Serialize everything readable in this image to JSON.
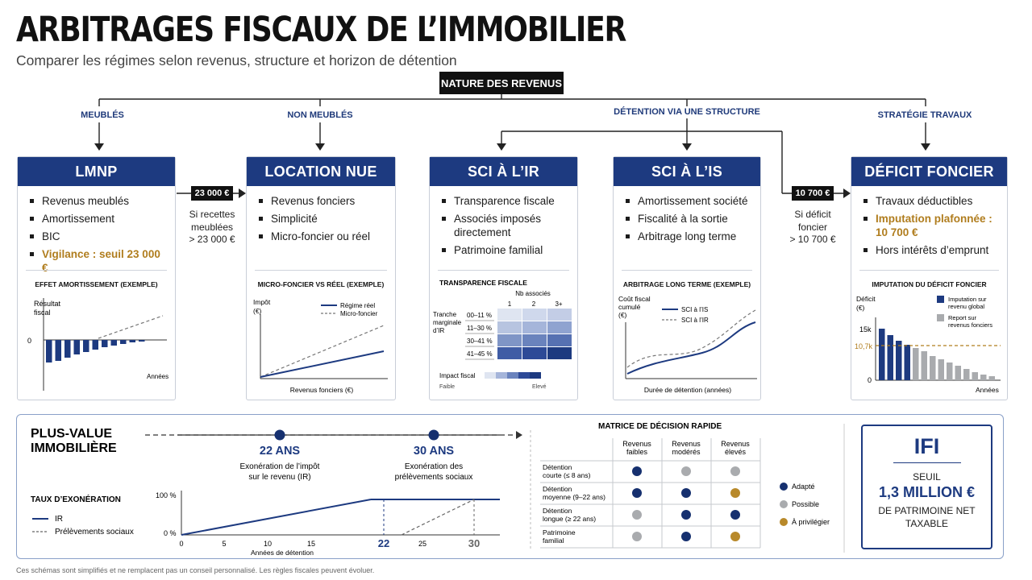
{
  "header": {
    "title": "ARBITRAGES FISCAUX DE L’IMMOBILIER",
    "subtitle": "Comparer les régimes selon revenus, structure et horizon de détention"
  },
  "root": "NATURE DES REVENUS",
  "branches": {
    "meubles": "MEUBLÉS",
    "non_meubles": "NON MEUBLÉS",
    "structure": "DÉTENTION VIA UNE STRUCTURE",
    "travaux": "STRATÉGIE TRAVAUX"
  },
  "connectors": {
    "lmnp": {
      "tag": "23 000 €",
      "line1": "Si recettes",
      "line2": "meublées",
      "line3": "> 23 000 €"
    },
    "deficit": {
      "tag": "10 700 €",
      "line1": "Si déficit",
      "line2": "foncier",
      "line3": "> 10 700 €"
    }
  },
  "cards": {
    "lmnp": {
      "title": "LMNP",
      "items": [
        "Revenus meublés",
        "Amortissement",
        "BIC"
      ],
      "highlight": "Vigilance : seuil 23 000 €",
      "chart_title": "EFFET AMORTISSEMENT (EXEMPLE)",
      "ylabel1": "Résultat",
      "ylabel2": "fiscal",
      "zero": "0",
      "xlabel": "Années"
    },
    "nue": {
      "title": "LOCATION NUE",
      "items": [
        "Revenus fonciers",
        "Simplicité",
        "Micro-foncier ou réel"
      ],
      "chart_title": "MICRO-FONCIER VS RÉEL (EXEMPLE)",
      "ylabel1": "Impôt",
      "ylabel2": "(€)",
      "legend1": "Régime réel",
      "legend2": "Micro-foncier",
      "xlabel": "Revenus fonciers (€)"
    },
    "sci_ir": {
      "title": "SCI À L’IR",
      "items": [
        "Transparence fiscale",
        "Associés imposés",
        "directement",
        "Patrimoine familial"
      ],
      "chart_title": "TRANSPARENCE FISCALE",
      "col_title": "Nb associés",
      "cols": [
        "1",
        "2",
        "3+"
      ],
      "row_title1": "Tranche",
      "row_title2": "marginale",
      "row_title3": "d’IR",
      "rows": [
        "00–11 %",
        "11–30 %",
        "30–41 %",
        "41–45 %"
      ],
      "impact_label": "Impact fiscal",
      "low": "Faible",
      "high": "Elevé"
    },
    "sci_is": {
      "title": "SCI À L’IS",
      "items": [
        "Amortissement société",
        "Fiscalité à la sortie",
        "Arbitrage long terme"
      ],
      "chart_title": "ARBITRAGE LONG TERME (EXEMPLE)",
      "ylabel1": "Coût fiscal",
      "ylabel2": "cumulé",
      "ylabel3": "(€)",
      "legend1": "SCI à l’IS",
      "legend2": "SCI à l’IR",
      "xlabel": "Durée de détention (années)"
    },
    "deficit": {
      "title": "DÉFICIT FONCIER",
      "items_top": [
        "Travaux déductibles"
      ],
      "highlight1": "Imputation plafonnée :",
      "highlight2": "10 700 €",
      "items_bottom": [
        "Hors intérêts d’emprunt"
      ],
      "chart_title": "IMPUTATION DU DÉFICIT FONCIER",
      "ylabel1": "Déficit",
      "ylabel2": "(€)",
      "tick15": "15k",
      "tick107": "10,7k",
      "tick0": "0",
      "legend1a": "Imputation sur",
      "legend1b": "revenu global",
      "legend2a": "Report sur",
      "legend2b": "revenus fonciers",
      "xlabel": "Années"
    }
  },
  "plus_value": {
    "title1": "PLUS-VALUE",
    "title2": "IMMOBILIÈRE",
    "m1_label": "22 ANS",
    "m1_desc1": "Exonération de l’impôt",
    "m1_desc2": "sur le revenu (IR)",
    "m2_label": "30 ANS",
    "m2_desc1": "Exonération des",
    "m2_desc2": "prélèvements sociaux",
    "taux_title": "TAUX D’EXONÉRATION",
    "legend_ir": "IR",
    "legend_ps": "Prélèvements sociaux",
    "y100": "100 %",
    "y0": "0 %",
    "xticks": [
      "0",
      "5",
      "10",
      "15",
      "22",
      "25",
      "30"
    ],
    "xlabel": "Années de détention"
  },
  "matrix": {
    "title": "MATRICE DE DÉCISION RAPIDE",
    "cols": [
      [
        "Revenus",
        "faibles"
      ],
      [
        "Revenus",
        "modérés"
      ],
      [
        "Revenus",
        "élevés"
      ]
    ],
    "rows": [
      [
        "Détention",
        "courte (≤ 8 ans)"
      ],
      [
        "Détention",
        "moyenne (9–22 ans)"
      ],
      [
        "Détention",
        "longue (≥ 22 ans)"
      ],
      [
        "Patrimoine",
        "familial"
      ]
    ],
    "cells": [
      [
        "adapte",
        "possible",
        "possible"
      ],
      [
        "adapte",
        "adapte",
        "privilegier"
      ],
      [
        "possible",
        "adapte",
        "adapte"
      ],
      [
        "possible",
        "adapte",
        "privilegier"
      ]
    ],
    "legend_adapte": "Adapté",
    "legend_possible": "Possible",
    "legend_privilegier": "À privilégier",
    "colors": {
      "adapte": "#16306f",
      "possible": "#a9abae",
      "privilegier": "#b8892a"
    }
  },
  "ifi": {
    "title": "IFI",
    "line1": "SEUIL",
    "line2": "1,3 MILLION €",
    "line3": "DE PATRIMOINE NET",
    "line4": "TAXABLE"
  },
  "footer": "Ces schémas sont simplifiés et ne remplacent pas un conseil personnalisé. Les règles fiscales peuvent évoluer.",
  "colors": {
    "navy": "#1d3a80",
    "gold": "#b07d1e",
    "grey": "#a9abae"
  }
}
